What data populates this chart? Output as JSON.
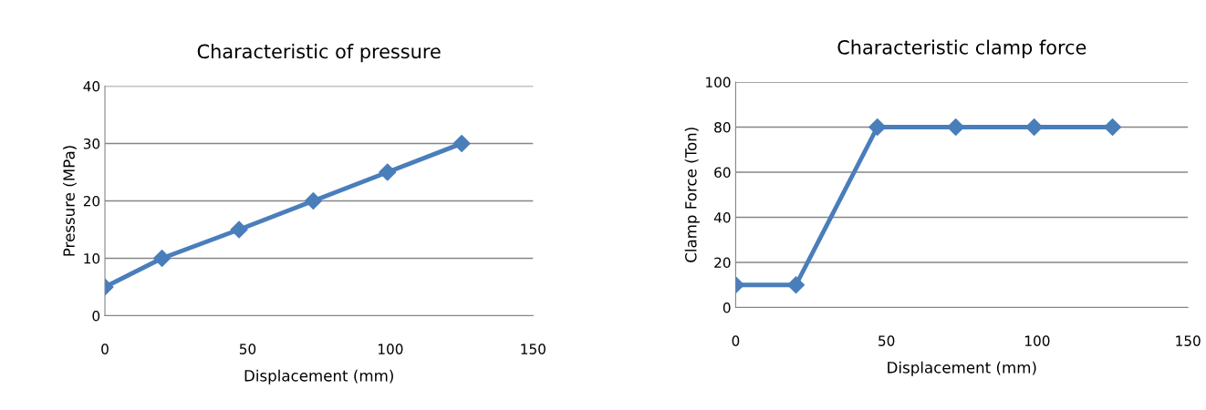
{
  "chart_data": [
    {
      "type": "line",
      "title": "Characteristic of pressure",
      "xlabel": "Displacement (mm)",
      "ylabel": "Pressure (MPa)",
      "x": [
        0,
        20,
        47,
        73,
        99,
        125
      ],
      "series": [
        {
          "color": "#4a7ebb",
          "values": [
            5,
            10,
            15,
            20,
            25,
            30
          ]
        }
      ],
      "xlim": [
        0,
        150
      ],
      "xticks": [
        0,
        50,
        100,
        150
      ],
      "ylim": [
        0,
        40
      ],
      "yticks": [
        0,
        10,
        20,
        30,
        40
      ],
      "grid": "y",
      "marker": "diamond",
      "line_style": "solid"
    },
    {
      "type": "line",
      "title": "Characteristic clamp force",
      "xlabel": "Displacement (mm)",
      "ylabel": "Clamp Force (Ton)",
      "x": [
        0,
        20,
        47,
        73,
        99,
        125
      ],
      "series": [
        {
          "color": "#4a7ebb",
          "values": [
            10,
            10,
            80,
            80,
            80,
            80
          ]
        }
      ],
      "xlim": [
        0,
        150
      ],
      "xticks": [
        0,
        50,
        100,
        150
      ],
      "ylim": [
        0,
        100
      ],
      "yticks": [
        0,
        20,
        40,
        60,
        80,
        100
      ],
      "grid": "y",
      "marker": "diamond",
      "line_style": "solid"
    }
  ]
}
